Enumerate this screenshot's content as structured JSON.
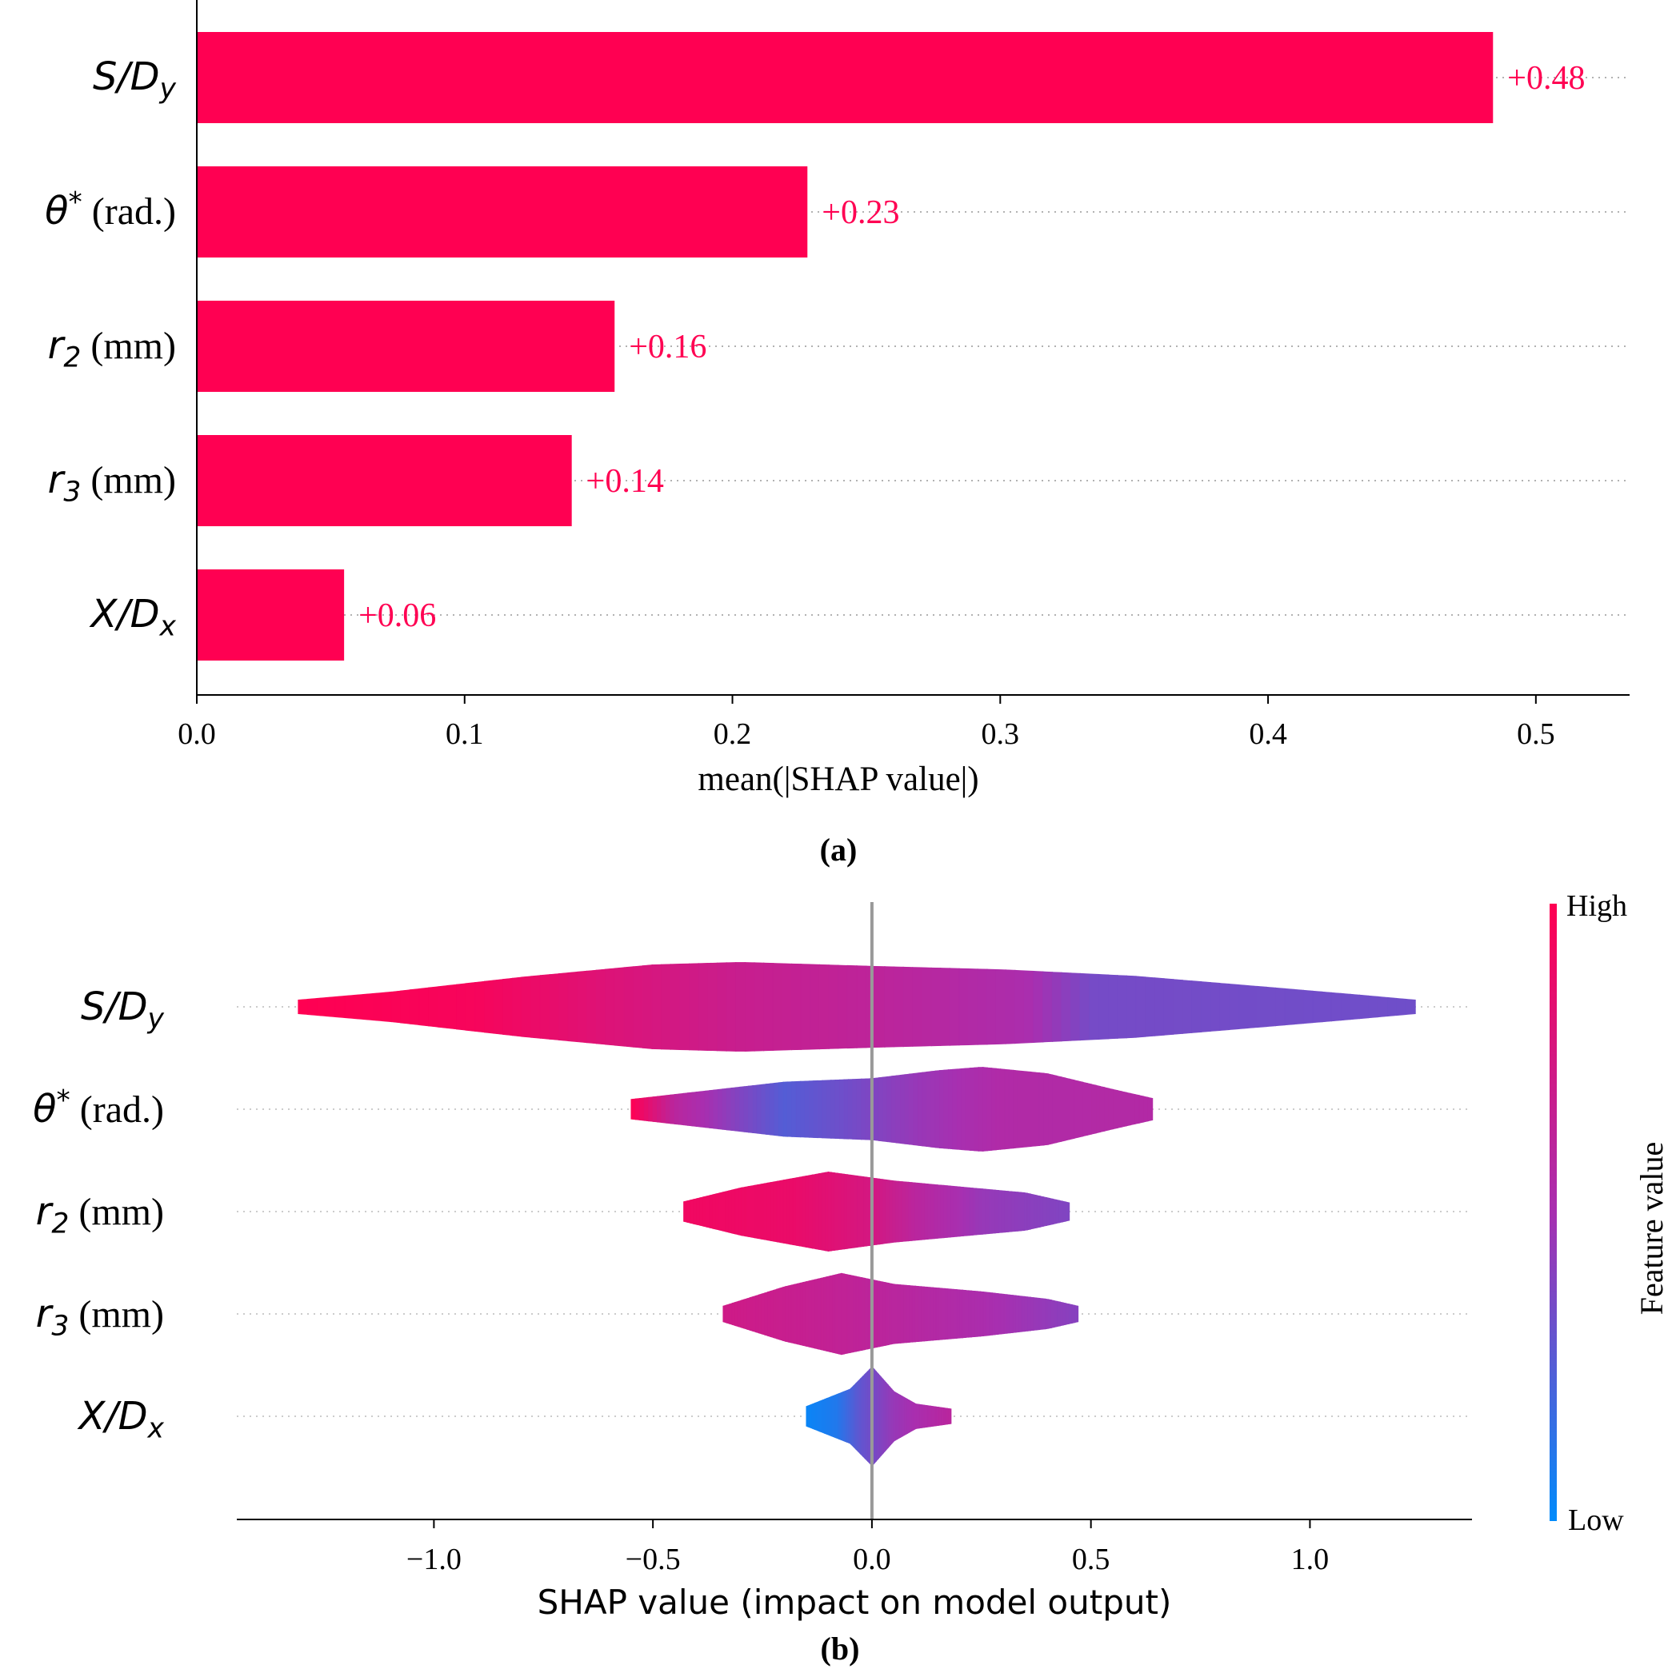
{
  "chart_data": [
    {
      "type": "bar",
      "panel_caption": "(a)",
      "title": "",
      "xlabel": "mean(|SHAP value|)",
      "ylabel": "",
      "xlim": [
        0,
        0.535
      ],
      "xticks": [
        "0.0",
        "0.1",
        "0.2",
        "0.3",
        "0.4",
        "0.5"
      ],
      "features": [
        {
          "sym": "S/D",
          "sub": "y",
          "unit": ""
        },
        {
          "sym": "θ",
          "sup": "*",
          "unit": "(rad.)"
        },
        {
          "sym": "r",
          "sub": "2",
          "unit": "(mm)"
        },
        {
          "sym": "r",
          "sub": "3",
          "unit": "(mm)"
        },
        {
          "sym": "X/D",
          "sub": "x",
          "unit": ""
        }
      ],
      "values": [
        0.484,
        0.228,
        0.156,
        0.14,
        0.055
      ],
      "value_labels": [
        "+0.48",
        "+0.23",
        "+0.16",
        "+0.14",
        "+0.06"
      ],
      "bar_color": "#ff0052"
    },
    {
      "type": "violin",
      "panel_caption": "(b)",
      "title": "",
      "xlabel": "SHAP value (impact on model output)",
      "ylabel": "",
      "xlim": [
        -1.45,
        1.37
      ],
      "xticks": [
        "−1.0",
        "−0.5",
        "0.0",
        "0.5",
        "1.0"
      ],
      "xtick_values": [
        -1.0,
        -0.5,
        0.0,
        0.5,
        1.0
      ],
      "features": [
        {
          "sym": "S/D",
          "sub": "y",
          "unit": ""
        },
        {
          "sym": "θ",
          "sup": "*",
          "unit": "(rad.)"
        },
        {
          "sym": "r",
          "sub": "2",
          "unit": "(mm)"
        },
        {
          "sym": "r",
          "sub": "3",
          "unit": "(mm)"
        },
        {
          "sym": "X/D",
          "sub": "x",
          "unit": ""
        }
      ],
      "violins": [
        {
          "range": [
            -1.31,
            1.24
          ],
          "density": [
            [
              -1.31,
              0.14
            ],
            [
              -1.1,
              0.3
            ],
            [
              -0.8,
              0.6
            ],
            [
              -0.5,
              0.85
            ],
            [
              -0.3,
              0.9
            ],
            [
              0,
              0.82
            ],
            [
              0.3,
              0.75
            ],
            [
              0.6,
              0.62
            ],
            [
              0.9,
              0.4
            ],
            [
              1.1,
              0.25
            ],
            [
              1.24,
              0.14
            ]
          ],
          "colors": [
            [
              -1.31,
              0.0
            ],
            [
              -0.9,
              0.05
            ],
            [
              -0.6,
              0.2
            ],
            [
              -0.3,
              0.32
            ],
            [
              0.0,
              0.38
            ],
            [
              0.35,
              0.48
            ],
            [
              0.5,
              0.65
            ],
            [
              1.24,
              0.67
            ]
          ]
        },
        {
          "range": [
            -0.55,
            0.64
          ],
          "density": [
            [
              -0.55,
              0.2
            ],
            [
              -0.4,
              0.35
            ],
            [
              -0.2,
              0.55
            ],
            [
              0,
              0.62
            ],
            [
              0.15,
              0.78
            ],
            [
              0.25,
              0.85
            ],
            [
              0.4,
              0.72
            ],
            [
              0.55,
              0.4
            ],
            [
              0.64,
              0.22
            ]
          ],
          "colors": [
            [
              -0.55,
              0.0
            ],
            [
              -0.45,
              0.4
            ],
            [
              -0.3,
              0.62
            ],
            [
              -0.2,
              0.75
            ],
            [
              -0.05,
              0.66
            ],
            [
              0.1,
              0.55
            ],
            [
              0.3,
              0.45
            ],
            [
              0.64,
              0.44
            ]
          ]
        },
        {
          "range": [
            -0.43,
            0.45
          ],
          "density": [
            [
              -0.43,
              0.2
            ],
            [
              -0.3,
              0.48
            ],
            [
              -0.1,
              0.8
            ],
            [
              0.05,
              0.62
            ],
            [
              0.2,
              0.5
            ],
            [
              0.35,
              0.38
            ],
            [
              0.45,
              0.18
            ]
          ],
          "colors": [
            [
              -0.43,
              0.08
            ],
            [
              -0.18,
              0.12
            ],
            [
              0.0,
              0.25
            ],
            [
              0.1,
              0.4
            ],
            [
              0.25,
              0.55
            ],
            [
              0.45,
              0.62
            ]
          ]
        },
        {
          "range": [
            -0.34,
            0.47
          ],
          "density": [
            [
              -0.34,
              0.16
            ],
            [
              -0.2,
              0.55
            ],
            [
              -0.07,
              0.82
            ],
            [
              0.05,
              0.6
            ],
            [
              0.25,
              0.45
            ],
            [
              0.4,
              0.3
            ],
            [
              0.47,
              0.16
            ]
          ],
          "colors": [
            [
              -0.34,
              0.28
            ],
            [
              -0.1,
              0.35
            ],
            [
              0.1,
              0.42
            ],
            [
              0.25,
              0.48
            ],
            [
              0.47,
              0.6
            ]
          ]
        },
        {
          "range": [
            -0.15,
            0.18
          ],
          "density": [
            [
              -0.15,
              0.2
            ],
            [
              -0.05,
              0.55
            ],
            [
              0.0,
              1.0
            ],
            [
              0.05,
              0.5
            ],
            [
              0.1,
              0.25
            ],
            [
              0.18,
              0.15
            ]
          ],
          "colors": [
            [
              -0.15,
              0.97
            ],
            [
              -0.08,
              0.9
            ],
            [
              -0.03,
              0.72
            ],
            [
              0.05,
              0.55
            ],
            [
              0.18,
              0.4
            ]
          ]
        }
      ],
      "colorbar": {
        "label": "Feature value",
        "high": "High",
        "low": "Low",
        "high_color": "#ff0052",
        "mid_color": "#a82fb0",
        "low_color": "#008bfb"
      }
    }
  ]
}
